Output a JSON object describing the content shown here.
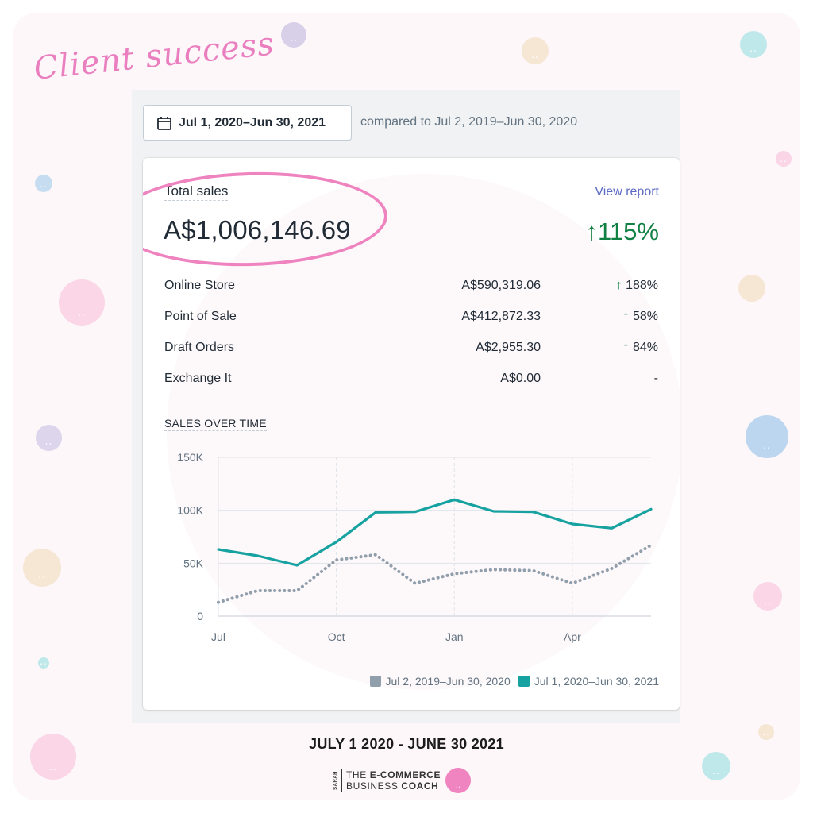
{
  "brand": {
    "script_title": "Client success",
    "caption": "JULY 1 2020 - JUNE 30 2021",
    "logo_vertical": "SARAH",
    "logo_vertical_small": "CHARNEY",
    "logo_line1_a": "THE ",
    "logo_line1_b": "E-COMMERCE",
    "logo_line2_a": "BUSINESS ",
    "logo_line2_b": "COACH",
    "accent": "#ef84c0"
  },
  "toolbar": {
    "date_range_label": "Jul 1, 2020–Jun 30, 2021",
    "compare_text": "compared to Jul 2, 2019–Jun 30, 2020"
  },
  "card": {
    "title": "Total sales",
    "total_value": "A$1,006,146.69",
    "view_report_label": "View report",
    "total_change": "115%",
    "rows": [
      {
        "name": "Online Store",
        "amount": "A$590,319.06",
        "change": "188%",
        "arrow": true
      },
      {
        "name": "Point of Sale",
        "amount": "A$412,872.33",
        "change": "58%",
        "arrow": true
      },
      {
        "name": "Draft Orders",
        "amount": "A$2,955.30",
        "change": "84%",
        "arrow": true
      },
      {
        "name": "Exchange It",
        "amount": "A$0.00",
        "change": "-",
        "arrow": false
      }
    ],
    "chart_title": "SALES OVER TIME"
  },
  "chart_data": {
    "type": "line",
    "title": "SALES OVER TIME",
    "x": [
      "Jul",
      "Aug",
      "Sep",
      "Oct",
      "Nov",
      "Dec",
      "Jan",
      "Feb",
      "Mar",
      "Apr",
      "May",
      "Jun"
    ],
    "x_tick_labels": [
      "Jul",
      "Oct",
      "Jan",
      "Apr"
    ],
    "y_tick_labels": [
      "150K",
      "100K",
      "50K",
      "0"
    ],
    "ylim": [
      0,
      150000
    ],
    "grid": true,
    "legend_position": "bottom-right",
    "series": [
      {
        "name": "Jul 1, 2020–Jun 30, 2021",
        "color": "#16a2a0",
        "style": "solid",
        "values": [
          63000,
          57000,
          48000,
          70000,
          98000,
          98500,
          110000,
          99000,
          98500,
          87000,
          83000,
          101000
        ]
      },
      {
        "name": "Jul 2, 2019–Jun 30, 2020",
        "color": "#919eab",
        "style": "dotted",
        "values": [
          13000,
          24000,
          24000,
          53000,
          58000,
          31000,
          40000,
          44000,
          43000,
          31000,
          45000,
          67000
        ]
      }
    ]
  }
}
